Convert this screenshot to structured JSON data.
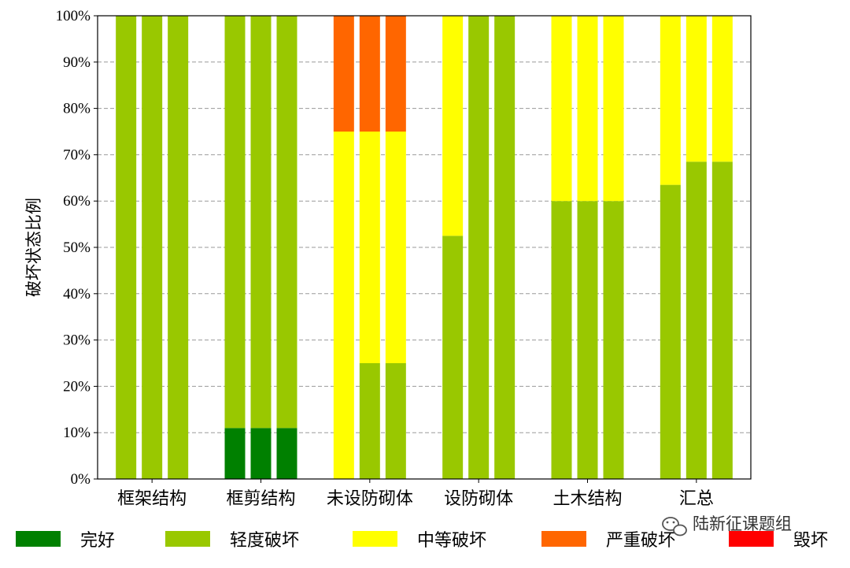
{
  "chart_data": {
    "type": "bar",
    "stacked": true,
    "percent": true,
    "ylabel": "破坏状态比例",
    "ylim": [
      0,
      100
    ],
    "yticks": [
      "0%",
      "10%",
      "20%",
      "30%",
      "40%",
      "50%",
      "60%",
      "70%",
      "80%",
      "90%",
      "100%"
    ],
    "grid": "horizontal-dashed",
    "legend_position": "bottom",
    "categories": [
      "框架结构",
      "框剪结构",
      "未设防砌体",
      "设防砌体",
      "土木结构",
      "汇总"
    ],
    "bars_per_category": 3,
    "series": [
      {
        "name": "完好",
        "color": "#008000",
        "values": [
          [
            0,
            0,
            0
          ],
          [
            11,
            11,
            11
          ],
          [
            0,
            0,
            0
          ],
          [
            0,
            0,
            0
          ],
          [
            0,
            0,
            0
          ],
          [
            0,
            0,
            0
          ]
        ]
      },
      {
        "name": "轻度破坏",
        "color": "#99c800",
        "values": [
          [
            100,
            100,
            100
          ],
          [
            89,
            89,
            89
          ],
          [
            0,
            25,
            25
          ],
          [
            52.5,
            100,
            100
          ],
          [
            60,
            60,
            60
          ],
          [
            63.5,
            68.5,
            68.5
          ]
        ]
      },
      {
        "name": "中等破坏",
        "color": "#ffff00",
        "values": [
          [
            0,
            0,
            0
          ],
          [
            0,
            0,
            0
          ],
          [
            75,
            50,
            50
          ],
          [
            47.5,
            0,
            0
          ],
          [
            40,
            40,
            40
          ],
          [
            36.5,
            31.5,
            31.5
          ]
        ]
      },
      {
        "name": "严重破坏",
        "color": "#ff6600",
        "values": [
          [
            0,
            0,
            0
          ],
          [
            0,
            0,
            0
          ],
          [
            25,
            25,
            25
          ],
          [
            0,
            0,
            0
          ],
          [
            0,
            0,
            0
          ],
          [
            0,
            0,
            0
          ]
        ]
      },
      {
        "name": "毁坏",
        "color": "#ff0000",
        "values": [
          [
            0,
            0,
            0
          ],
          [
            0,
            0,
            0
          ],
          [
            0,
            0,
            0
          ],
          [
            0,
            0,
            0
          ],
          [
            0,
            0,
            0
          ],
          [
            0,
            0,
            0
          ]
        ]
      }
    ]
  },
  "watermark": {
    "text": "陆新征课题组",
    "icon": "wechat-icon"
  }
}
